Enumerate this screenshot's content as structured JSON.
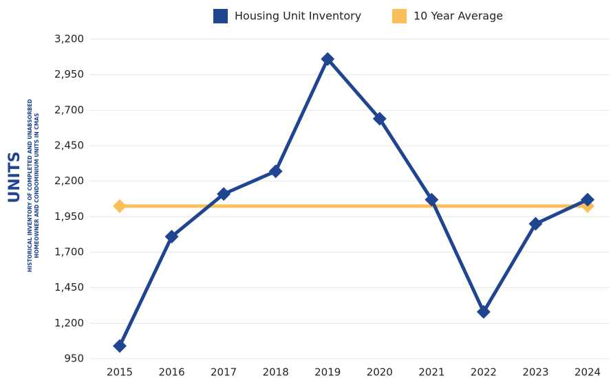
{
  "chart_data": {
    "type": "line",
    "y_label": "UNITS",
    "y_sublabel": [
      "HISTORICAL INVENTORY OF COMPLETED AND UNABSORBED",
      "HOMEOWNER AND CONDOMINIUM UNITS IN CMAS"
    ],
    "categories": [
      "2015",
      "2016",
      "2017",
      "2018",
      "2019",
      "2020",
      "2021",
      "2022",
      "2023",
      "2024"
    ],
    "series": [
      {
        "name": "Housing Unit Inventory",
        "color": "#1f4590",
        "values": [
          1040,
          1810,
          2110,
          2270,
          3060,
          2640,
          2070,
          1280,
          1900,
          2070
        ]
      },
      {
        "name": "10 Year Average",
        "color": "#fbbf5a",
        "values": [
          2025,
          2025,
          2025,
          2025,
          2025,
          2025,
          2025,
          2025,
          2025,
          2025
        ]
      }
    ],
    "ylim": [
      950,
      3200
    ],
    "yticks": [
      950,
      {
        "value": 1200,
        "label": "1,200"
      },
      {
        "value": 1450,
        "label": "1,450"
      },
      {
        "value": 1700,
        "label": "1,700"
      },
      {
        "value": 1950,
        "label": "1,950"
      },
      {
        "value": 2200,
        "label": "2,200"
      },
      {
        "value": 2450,
        "label": "2,450"
      },
      {
        "value": 2700,
        "label": "2,700"
      },
      {
        "value": 2950,
        "label": "2,950"
      },
      {
        "value": 3200,
        "label": "3,200"
      }
    ],
    "grid": true,
    "legend": "top"
  }
}
